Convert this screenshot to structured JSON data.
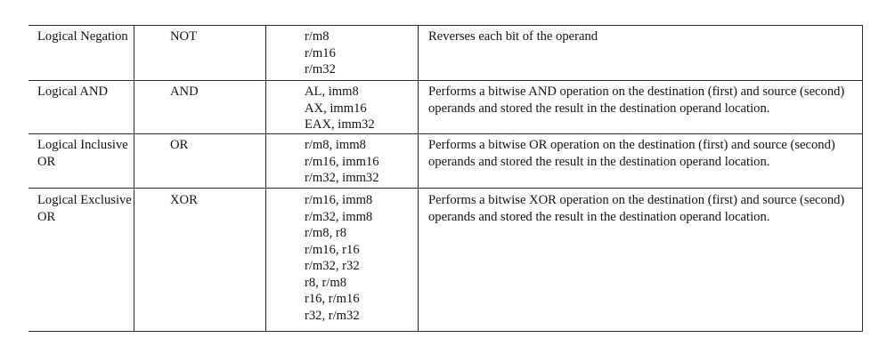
{
  "table": {
    "rows": [
      {
        "instruction": "Logical Negation",
        "mnemonic": "NOT",
        "operands": [
          "r/m8",
          "r/m16",
          "r/m32"
        ],
        "description": "Reverses each bit of the operand"
      },
      {
        "instruction": "Logical AND",
        "mnemonic": "AND",
        "operands": [
          "AL, imm8",
          "AX, imm16",
          "EAX, imm32"
        ],
        "description": "Performs a bitwise AND operation on the destination (first) and source (second) operands and stored the result in the destination operand location."
      },
      {
        "instruction": "Logical Inclusive OR",
        "mnemonic": "OR",
        "operands": [
          "r/m8, imm8",
          "r/m16, imm16",
          "r/m32, imm32"
        ],
        "description": "Performs a bitwise OR operation on the destination (first) and source (second) operands and stored the result in the destination operand location."
      },
      {
        "instruction": "Logical Exclusive OR",
        "mnemonic": "XOR",
        "operands": [
          "r/m16, imm8",
          "r/m32, imm8",
          "r/m8, r8",
          "r/m16, r16",
          "r/m32, r32",
          "r8, r/m8",
          "r16, r/m16",
          "r32, r/m32"
        ],
        "description": "Performs a bitwise XOR operation on the destination (first) and source (second) operands and stored the result in the destination operand location."
      }
    ]
  }
}
